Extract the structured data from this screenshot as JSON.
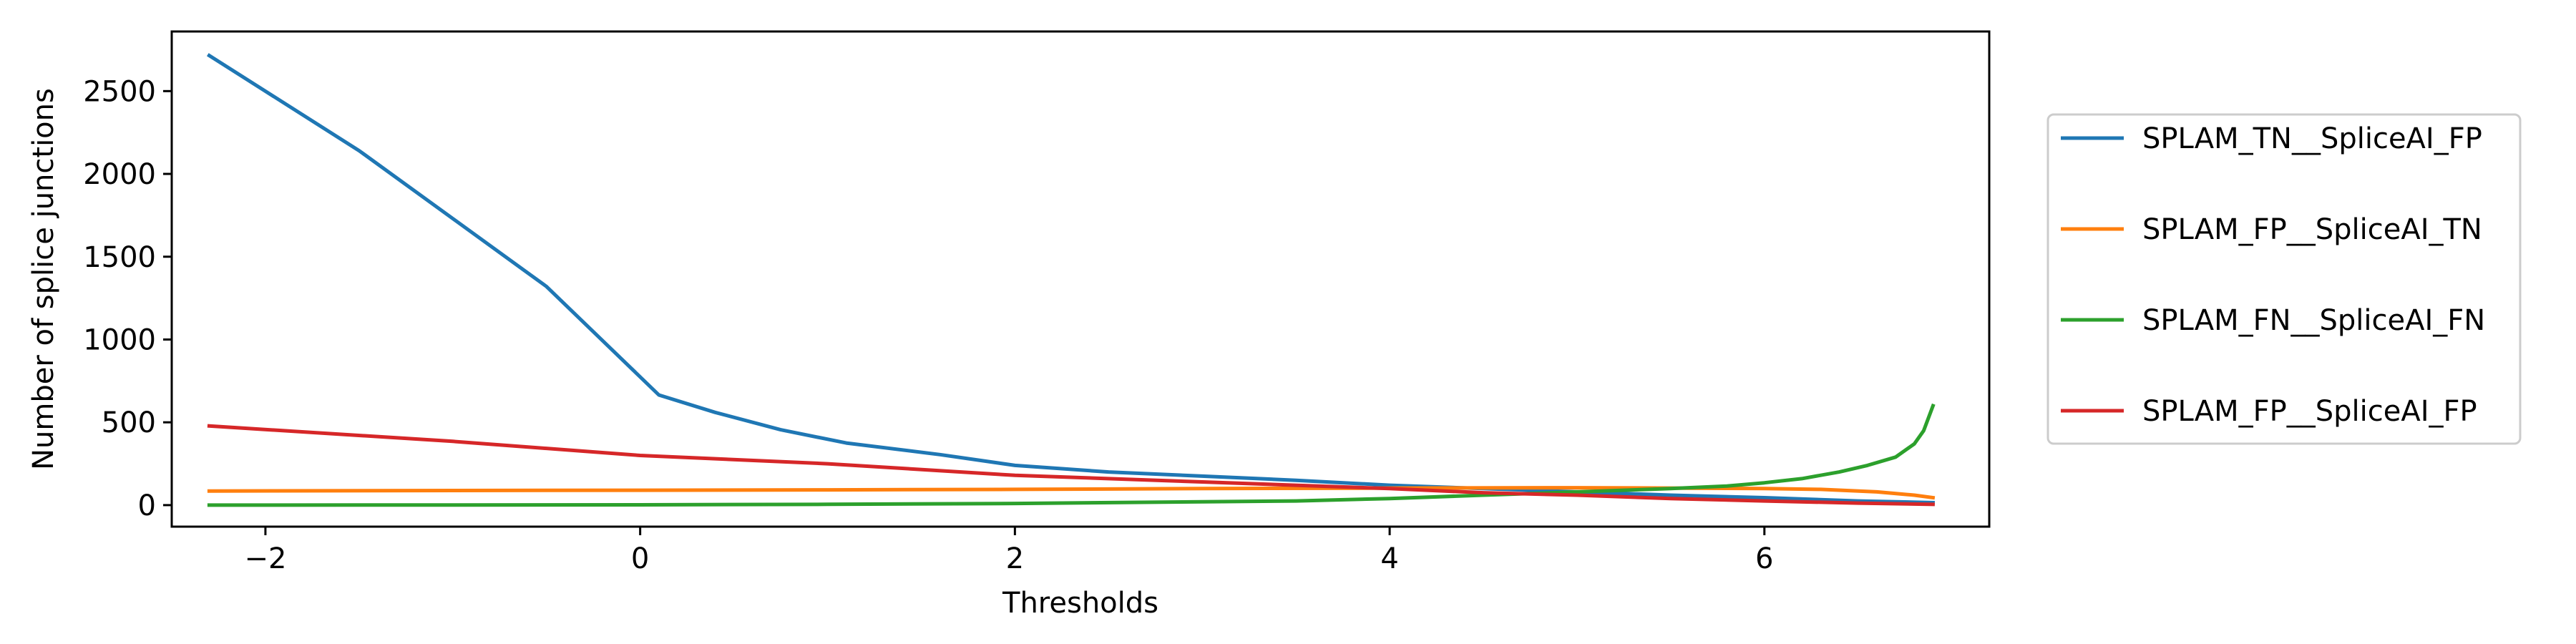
{
  "chart_data": {
    "type": "line",
    "title": "",
    "xlabel": "Thresholds",
    "ylabel": "Number of splice junctions",
    "xlim": [
      -2.5,
      7.2
    ],
    "ylim": [
      -130,
      2860
    ],
    "xticks": [
      -2,
      0,
      2,
      4,
      6
    ],
    "xtick_labels": [
      "−2",
      "0",
      "2",
      "4",
      "6"
    ],
    "yticks": [
      0,
      500,
      1000,
      1500,
      2000,
      2500
    ],
    "ytick_labels": [
      "0",
      "500",
      "1000",
      "1500",
      "2000",
      "2500"
    ],
    "grid": false,
    "legend_position": "outside-right",
    "series": [
      {
        "name": "SPLAM_TN__SpliceAI_FP",
        "color": "#1f77b4",
        "x": [
          -2.3,
          -1.5,
          -0.5,
          0.1,
          0.4,
          0.75,
          1.1,
          1.6,
          2.0,
          2.5,
          3.0,
          3.5,
          4.0,
          4.5,
          5.0,
          5.5,
          6.0,
          6.5,
          6.9
        ],
        "y": [
          2715,
          2140,
          1320,
          665,
          560,
          455,
          375,
          305,
          240,
          200,
          175,
          150,
          120,
          100,
          80,
          60,
          45,
          25,
          15
        ]
      },
      {
        "name": "SPLAM_FP__SpliceAI_TN",
        "color": "#ff7f0e",
        "x": [
          -2.3,
          -1.0,
          0.0,
          1.0,
          2.0,
          3.0,
          4.0,
          5.0,
          5.5,
          6.0,
          6.3,
          6.6,
          6.8,
          6.9
        ],
        "y": [
          85,
          88,
          90,
          92,
          95,
          100,
          103,
          105,
          103,
          100,
          95,
          80,
          60,
          45
        ]
      },
      {
        "name": "SPLAM_FN__SpliceAI_FN",
        "color": "#2ca02c",
        "x": [
          -2.3,
          -1.0,
          0.0,
          1.0,
          2.0,
          3.0,
          3.5,
          4.0,
          4.5,
          5.0,
          5.5,
          5.8,
          6.0,
          6.2,
          6.4,
          6.55,
          6.7,
          6.8,
          6.85,
          6.9
        ],
        "y": [
          0,
          1,
          2,
          5,
          10,
          20,
          25,
          40,
          60,
          80,
          100,
          115,
          135,
          160,
          200,
          240,
          290,
          370,
          450,
          600
        ]
      },
      {
        "name": "SPLAM_FP__SpliceAI_FP",
        "color": "#d62728",
        "x": [
          -2.3,
          -1.0,
          0.0,
          1.0,
          2.0,
          3.0,
          4.0,
          4.5,
          5.0,
          5.5,
          6.0,
          6.5,
          6.9
        ],
        "y": [
          478,
          385,
          300,
          250,
          180,
          140,
          100,
          75,
          60,
          40,
          25,
          12,
          5
        ]
      }
    ]
  }
}
